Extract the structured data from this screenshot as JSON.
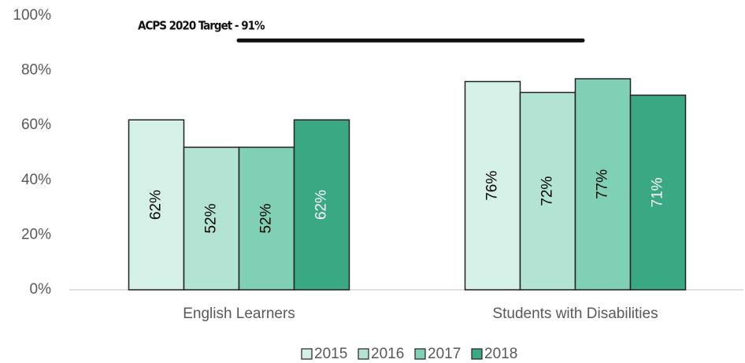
{
  "chart_data": {
    "type": "bar",
    "categories": [
      "English Learners",
      "Students with Disabilities"
    ],
    "series": [
      {
        "name": "2015",
        "color": "#d5f0e6",
        "values": [
          62,
          76
        ],
        "value_labels": [
          "62%",
          "76%"
        ]
      },
      {
        "name": "2016",
        "color": "#b3e3d2",
        "values": [
          52,
          72
        ],
        "value_labels": [
          "52%",
          "72%"
        ]
      },
      {
        "name": "2017",
        "color": "#7fd0b5",
        "values": [
          52,
          77
        ],
        "value_labels": [
          "52%",
          "77%"
        ]
      },
      {
        "name": "2018",
        "color": "#3ba884",
        "values": [
          62,
          71
        ],
        "value_labels": [
          "62%",
          "71%"
        ]
      }
    ],
    "ylim": [
      0,
      100
    ],
    "yticks": [
      {
        "value": 0,
        "label": "0%"
      },
      {
        "value": 20,
        "label": "20%"
      },
      {
        "value": 40,
        "label": "40%"
      },
      {
        "value": 60,
        "label": "60%"
      },
      {
        "value": 80,
        "label": "80%"
      },
      {
        "value": 100,
        "label": "100%"
      }
    ],
    "target": {
      "label": "ACPS 2020 Target - 91%",
      "value": 91
    },
    "legend": "bottom"
  }
}
